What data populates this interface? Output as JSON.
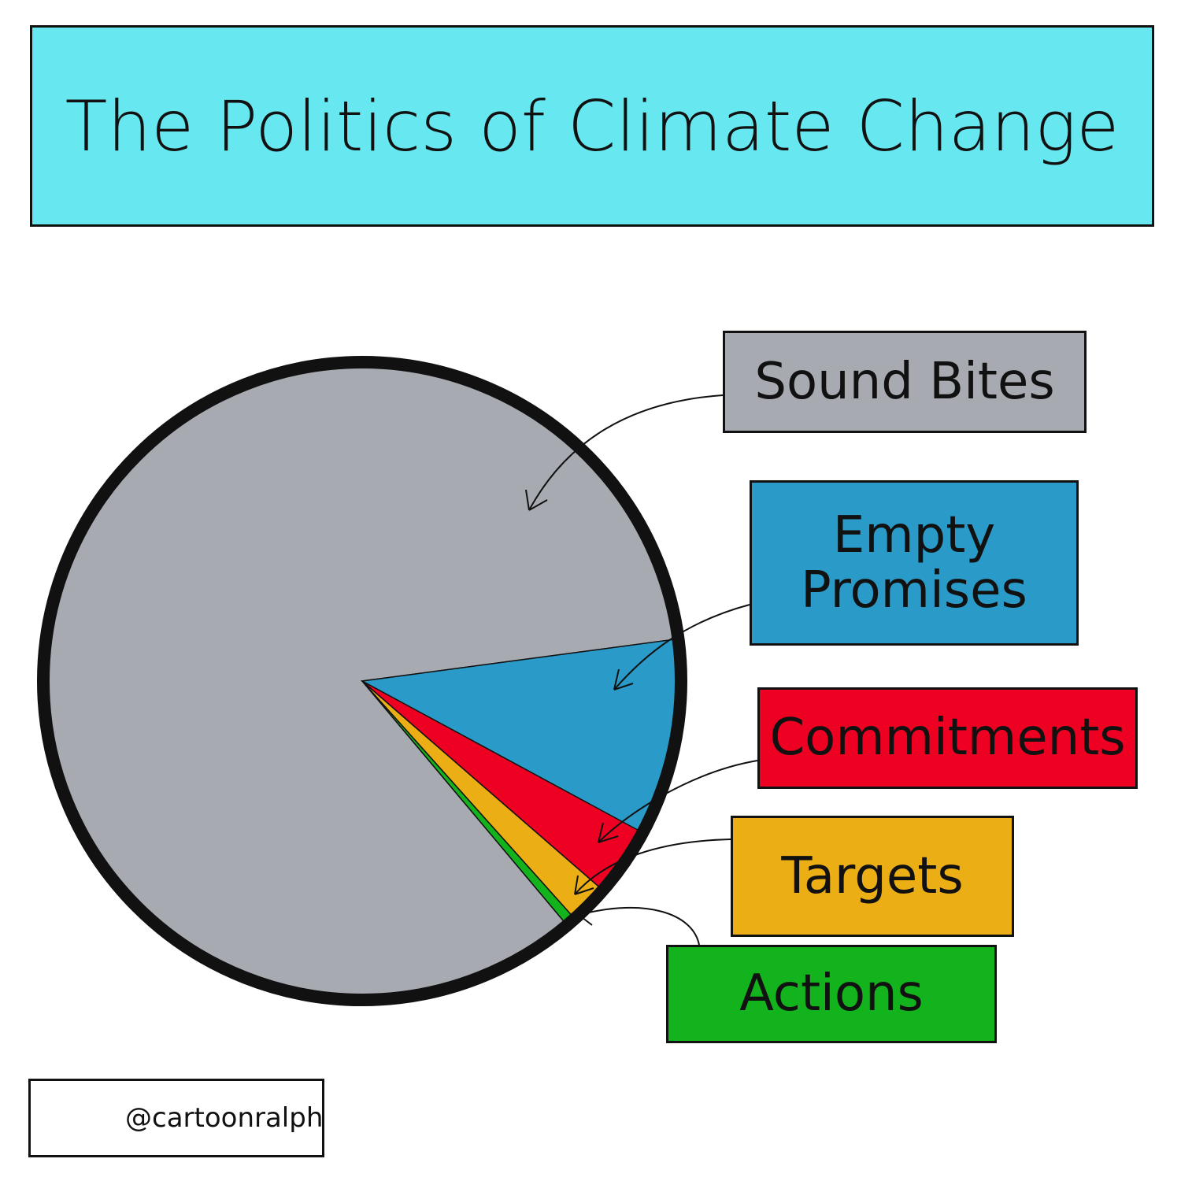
{
  "chart_data": {
    "type": "pie",
    "title": "The Politics of Climate Change",
    "categories": [
      "Sound Bites",
      "Empty Promises",
      "Commitments",
      "Targets",
      "Actions"
    ],
    "values": [
      84,
      10,
      3.5,
      2,
      0.5
    ],
    "colors": [
      "#a7aab1",
      "#2a9bc9",
      "#ee0022",
      "#ebae14",
      "#12b31c"
    ]
  },
  "credit": "@cartoonralph"
}
